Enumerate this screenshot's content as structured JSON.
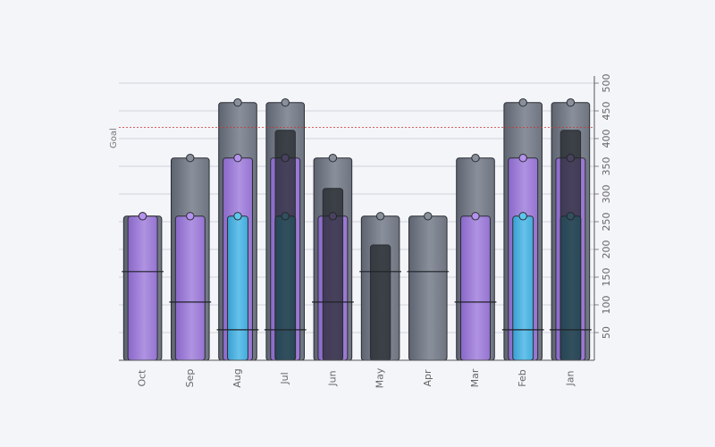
{
  "chart_data": {
    "type": "bar",
    "categories": [
      "Oct",
      "Sep",
      "Aug",
      "Jul",
      "Jun",
      "May",
      "Apr",
      "Mar",
      "Feb",
      "Jan"
    ],
    "ylim": [
      0,
      500
    ],
    "yticks": [
      50,
      100,
      150,
      200,
      250,
      300,
      350,
      400,
      450,
      500
    ],
    "y_axis_side": "right",
    "grid": true,
    "goal": {
      "label": "Goal",
      "value": 420,
      "color": "#cc3333"
    },
    "series": [
      {
        "values": [
          260,
          365,
          465,
          465,
          365,
          260,
          260,
          365,
          465,
          465
        ],
        "color": "#6b7280"
      },
      {
        "values": [
          260,
          260,
          365,
          365,
          260,
          null,
          null,
          260,
          365,
          365
        ],
        "color": "#a178e0"
      },
      {
        "values": [
          null,
          null,
          260,
          260,
          null,
          null,
          null,
          null,
          260,
          260
        ],
        "color": "#3fb6e0"
      },
      {
        "values": [
          null,
          null,
          null,
          415,
          310,
          208,
          null,
          null,
          null,
          415
        ],
        "color": "#1f2227"
      }
    ],
    "markers": [
      160,
      105,
      55,
      55,
      105,
      160,
      160,
      105,
      55,
      55
    ]
  }
}
